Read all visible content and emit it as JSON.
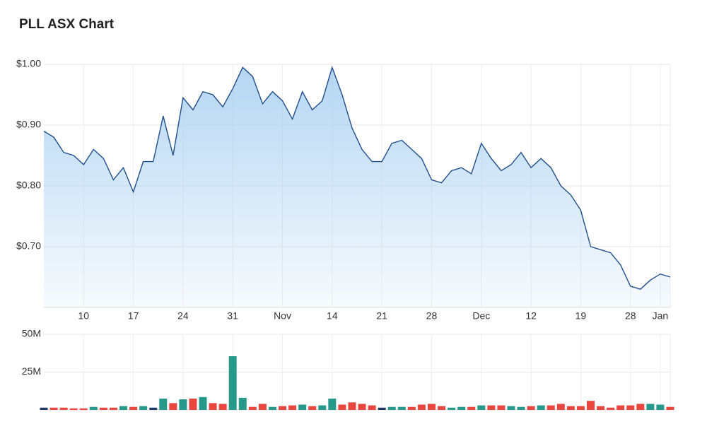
{
  "title": "PLL ASX Chart",
  "chart_data": [
    {
      "type": "area",
      "color": "#1f4e8c",
      "fill": "#9cc8ee",
      "grid": true,
      "categories": [
        null,
        null,
        null,
        null,
        "10",
        null,
        null,
        null,
        null,
        "17",
        null,
        null,
        null,
        null,
        "24",
        null,
        null,
        null,
        null,
        "31",
        null,
        null,
        null,
        null,
        "Nov",
        null,
        null,
        null,
        null,
        "14",
        null,
        null,
        null,
        null,
        "21",
        null,
        null,
        null,
        null,
        "28",
        null,
        null,
        null,
        null,
        "Dec",
        null,
        null,
        null,
        null,
        "12",
        null,
        null,
        null,
        null,
        "19",
        null,
        null,
        null,
        null,
        "28",
        null,
        null,
        "Jan",
        null
      ],
      "values": [
        0.89,
        0.88,
        0.855,
        0.85,
        0.835,
        0.86,
        0.845,
        0.81,
        0.83,
        0.79,
        0.84,
        0.84,
        0.915,
        0.85,
        0.945,
        0.925,
        0.955,
        0.95,
        0.93,
        0.96,
        0.995,
        0.98,
        0.935,
        0.955,
        0.94,
        0.91,
        0.955,
        0.925,
        0.94,
        0.995,
        0.95,
        0.895,
        0.86,
        0.84,
        0.84,
        0.87,
        0.875,
        0.86,
        0.845,
        0.81,
        0.805,
        0.825,
        0.83,
        0.82,
        0.87,
        0.845,
        0.825,
        0.835,
        0.855,
        0.83,
        0.845,
        0.83,
        0.8,
        0.785,
        0.76,
        0.7,
        0.695,
        0.69,
        0.67,
        0.635,
        0.63,
        0.645,
        0.655,
        0.65
      ],
      "ylim": [
        0.6,
        1.0
      ],
      "yticks": [
        {
          "value": 0.7,
          "label": "$0.70"
        },
        {
          "value": 0.8,
          "label": "$0.80"
        },
        {
          "value": 0.9,
          "label": "$0.90"
        },
        {
          "value": 1.0,
          "label": "$1.00"
        }
      ]
    },
    {
      "type": "bar",
      "grid": true,
      "values": [
        1500000,
        1500000,
        1500000,
        1000000,
        1000000,
        2000000,
        1500000,
        1500000,
        2500000,
        2000000,
        2500000,
        1500000,
        7500000,
        4500000,
        7000000,
        7500000,
        8500000,
        4500000,
        4000000,
        35500000,
        8000000,
        2000000,
        4000000,
        2000000,
        2500000,
        3000000,
        3500000,
        2500000,
        3000000,
        7500000,
        3500000,
        5000000,
        4000000,
        3000000,
        1500000,
        2000000,
        2000000,
        2000000,
        3500000,
        4000000,
        2500000,
        1500000,
        2000000,
        2000000,
        3000000,
        3000000,
        3000000,
        2500000,
        2000000,
        2500000,
        3000000,
        3000000,
        4000000,
        2500000,
        2500000,
        6000000,
        2500000,
        1500000,
        3000000,
        3000000,
        4000000,
        4000000,
        3500000,
        2000000
      ],
      "colors": [
        "#1f3a68",
        "#e8473f",
        "#e8473f",
        "#e8473f",
        "#e8473f",
        "#26998b",
        "#e8473f",
        "#e8473f",
        "#26998b",
        "#e8473f",
        "#26998b",
        "#1f3a68",
        "#26998b",
        "#e8473f",
        "#26998b",
        "#e8473f",
        "#26998b",
        "#e8473f",
        "#e8473f",
        "#26998b",
        "#26998b",
        "#e8473f",
        "#e8473f",
        "#26998b",
        "#e8473f",
        "#e8473f",
        "#26998b",
        "#e8473f",
        "#26998b",
        "#26998b",
        "#e8473f",
        "#e8473f",
        "#e8473f",
        "#e8473f",
        "#1f3a68",
        "#26998b",
        "#26998b",
        "#e8473f",
        "#e8473f",
        "#e8473f",
        "#e8473f",
        "#26998b",
        "#26998b",
        "#e8473f",
        "#26998b",
        "#e8473f",
        "#e8473f",
        "#26998b",
        "#26998b",
        "#e8473f",
        "#26998b",
        "#e8473f",
        "#e8473f",
        "#e8473f",
        "#e8473f",
        "#e8473f",
        "#e8473f",
        "#e8473f",
        "#e8473f",
        "#e8473f",
        "#e8473f",
        "#26998b",
        "#26998b",
        "#e8473f"
      ],
      "ylim": [
        0,
        50000000
      ],
      "yticks": [
        {
          "value": 25000000,
          "label": "25M"
        },
        {
          "value": 50000000,
          "label": "50M"
        }
      ]
    }
  ]
}
